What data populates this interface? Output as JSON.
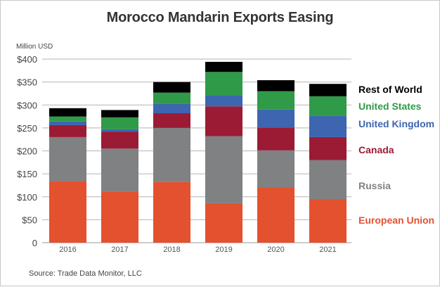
{
  "chart_data": {
    "type": "bar",
    "stacked": true,
    "title": "Morocco Mandarin Exports Easing",
    "ylabel": "Million USD",
    "xlabel": "",
    "source": "Source: Trade Data Monitor, LLC",
    "categories": [
      "2016",
      "2017",
      "2018",
      "2019",
      "2020",
      "2021"
    ],
    "ylim": [
      0,
      400
    ],
    "yticks": [
      0,
      50,
      100,
      150,
      200,
      250,
      300,
      350,
      400
    ],
    "ytick_labels": [
      "0",
      "$50",
      "$100",
      "$150",
      "$200",
      "$250",
      "$300",
      "$350",
      "$400"
    ],
    "grid": true,
    "legend_placement": "right",
    "series": [
      {
        "name": "European Union",
        "color": "#e4512f",
        "values": [
          134,
          111,
          132,
          86,
          121,
          95
        ]
      },
      {
        "name": "Russia",
        "color": "#808183",
        "values": [
          96,
          94,
          118,
          146,
          80,
          85
        ]
      },
      {
        "name": "Canada",
        "color": "#9b1b34",
        "values": [
          26,
          37,
          32,
          65,
          50,
          50
        ]
      },
      {
        "name": "United Kingdom",
        "color": "#3d65b0",
        "values": [
          8,
          5,
          20,
          24,
          39,
          46
        ]
      },
      {
        "name": "United States",
        "color": "#2f9a48",
        "values": [
          11,
          26,
          25,
          51,
          40,
          43
        ]
      },
      {
        "name": "Rest of World",
        "color": "#000000",
        "values": [
          18,
          16,
          23,
          22,
          24,
          27
        ]
      }
    ],
    "legend_label_colors": {
      "European Union": "#e4512f",
      "Russia": "#808183",
      "Canada": "#9b1b34",
      "United Kingdom": "#3d65b0",
      "United States": "#2f9a48",
      "Rest of World": "#000000"
    }
  }
}
